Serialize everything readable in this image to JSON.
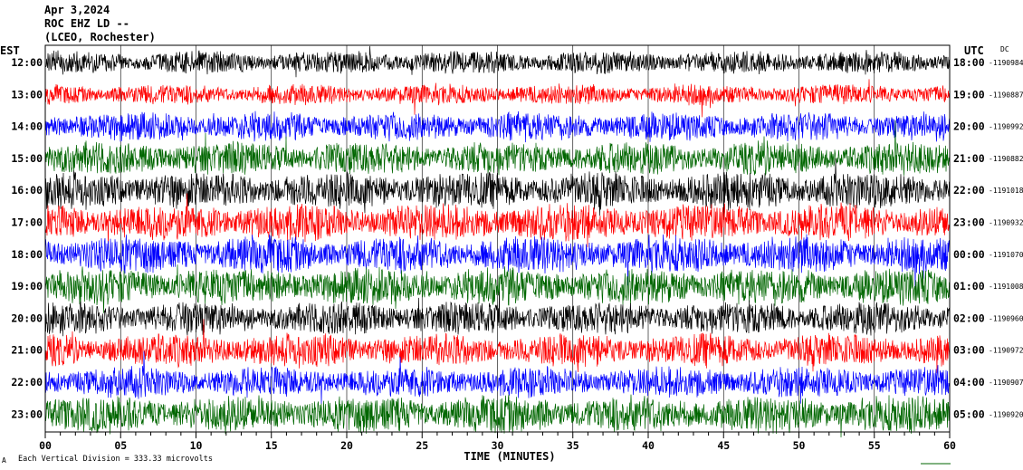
{
  "header": {
    "date": "Apr 3,2024",
    "station": "ROC EHZ LD --",
    "location": "(LCEO, Rochester)"
  },
  "left_axis_label": "EST",
  "right_axis_label": "UTC",
  "dc_label": "DC",
  "footer": {
    "scale_note": "Each Vertical Division =  333.33 microvolts"
  },
  "colors": {
    "trace_cycle": [
      "#000000",
      "#ff0000",
      "#0000ff",
      "#006600"
    ],
    "frame": "#000000",
    "grid": "#000000"
  },
  "chart_data": {
    "type": "line",
    "title": "",
    "xlabel": "TIME (MINUTES)",
    "ylabel": "",
    "x_ticks": [
      "00",
      "05",
      "10",
      "15",
      "20",
      "25",
      "30",
      "35",
      "40",
      "45",
      "50",
      "55",
      "60"
    ],
    "xlim": [
      0,
      60
    ],
    "grid": "vertical lines every 5 minutes",
    "series": [
      {
        "est": "12:00",
        "utc": "18:00",
        "dc": "-1190984",
        "amplitude": 0.55,
        "color": "#000000"
      },
      {
        "est": "13:00",
        "utc": "19:00",
        "dc": "-1190887",
        "amplitude": 0.5,
        "color": "#ff0000"
      },
      {
        "est": "14:00",
        "utc": "20:00",
        "dc": "-1190992",
        "amplitude": 0.7,
        "color": "#0000ff"
      },
      {
        "est": "15:00",
        "utc": "21:00",
        "dc": "-1190882",
        "amplitude": 0.8,
        "color": "#006600"
      },
      {
        "est": "16:00",
        "utc": "22:00",
        "dc": "-1191018",
        "amplitude": 0.9,
        "color": "#000000"
      },
      {
        "est": "17:00",
        "utc": "23:00",
        "dc": "-1190932",
        "amplitude": 0.9,
        "color": "#ff0000"
      },
      {
        "est": "18:00",
        "utc": "00:00",
        "dc": "-1191070",
        "amplitude": 0.9,
        "color": "#0000ff"
      },
      {
        "est": "19:00",
        "utc": "01:00",
        "dc": "-1191008",
        "amplitude": 0.9,
        "color": "#006600"
      },
      {
        "est": "20:00",
        "utc": "02:00",
        "dc": "-1190960",
        "amplitude": 0.8,
        "color": "#000000"
      },
      {
        "est": "21:00",
        "utc": "03:00",
        "dc": "-1190972",
        "amplitude": 0.8,
        "color": "#ff0000"
      },
      {
        "est": "22:00",
        "utc": "04:00",
        "dc": "-1190907",
        "amplitude": 0.75,
        "color": "#0000ff"
      },
      {
        "est": "23:00",
        "utc": "05:00",
        "dc": "-1190920",
        "amplitude": 0.9,
        "color": "#006600"
      }
    ]
  }
}
